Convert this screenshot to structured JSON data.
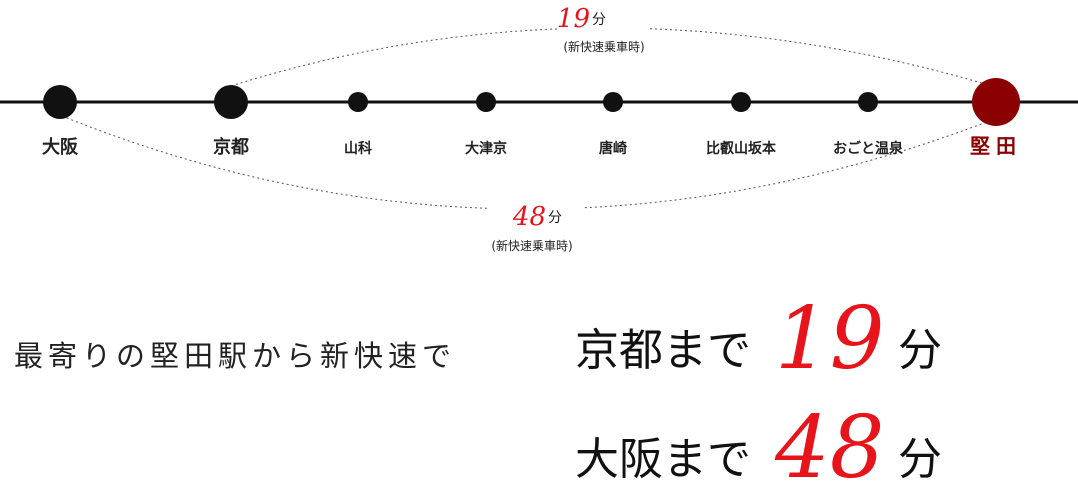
{
  "route": {
    "stations": [
      "大阪",
      "京都",
      "山科",
      "大津京",
      "唐崎",
      "比叡山坂本",
      "おごと温泉",
      "堅田"
    ],
    "kyoto_time": {
      "minutes": "19",
      "unit": "分",
      "note": "(新快速乗車時)"
    },
    "osaka_time": {
      "minutes": "48",
      "unit": "分",
      "note": "(新快速乗車時)"
    }
  },
  "message": {
    "lead": "最寄りの堅田駅から新快速で",
    "kyoto": {
      "text": "京都まで",
      "minutes": "19",
      "unit": "分"
    },
    "osaka": {
      "text": "大阪まで",
      "minutes": "48",
      "unit": "分"
    }
  }
}
